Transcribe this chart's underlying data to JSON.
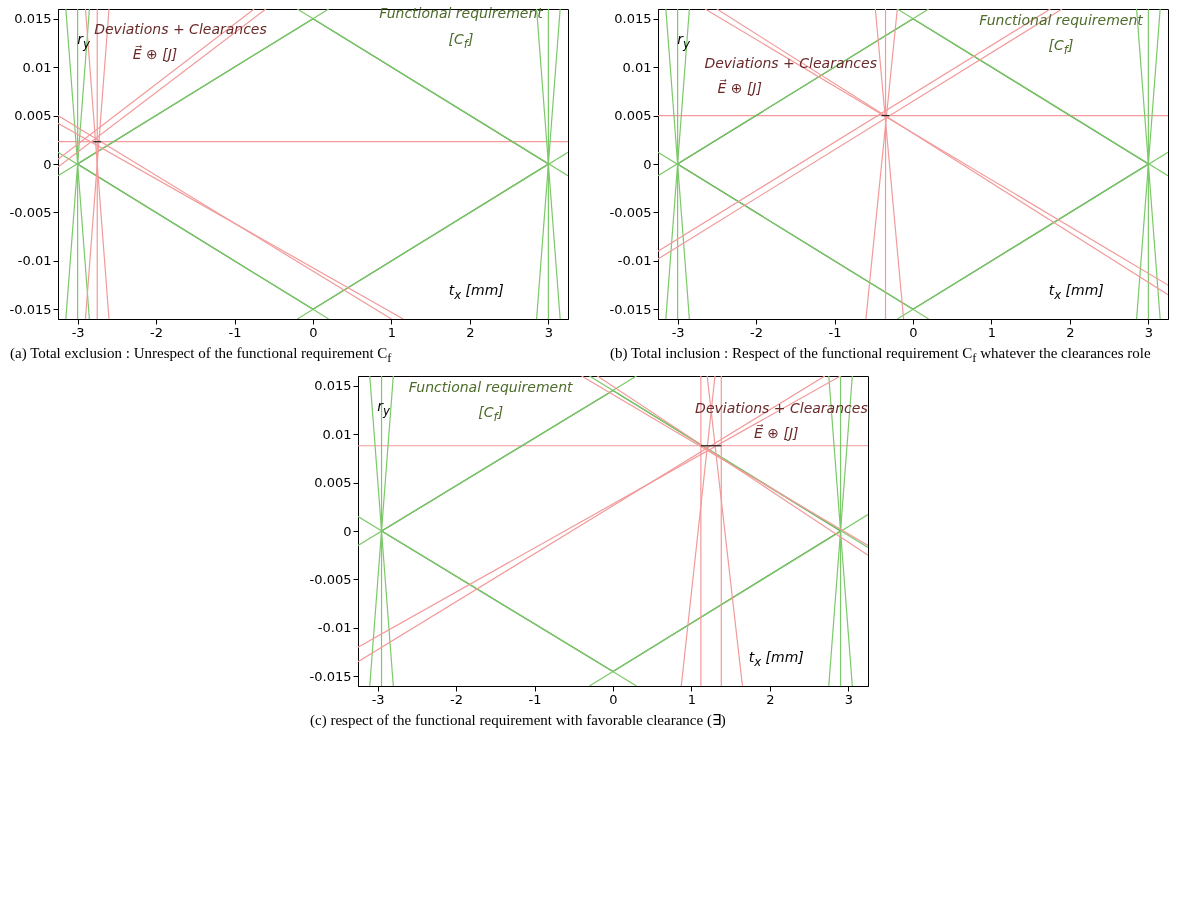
{
  "chart_data": [
    {
      "type": "line",
      "title": "(a) Total exclusion : Unrespect of the functional requirement C$_{f}$",
      "xlabel": "t$_{x}$  [mm]",
      "ylabel": "r$_{y}$",
      "xlim": [
        -3.25,
        3.25
      ],
      "ylim": [
        -0.016,
        0.016
      ],
      "xticks": [
        -3,
        -2,
        -1,
        0,
        1,
        2,
        3
      ],
      "yticks": [
        -0.015,
        -0.01,
        -0.005,
        0,
        0.005,
        0.01,
        0.015
      ],
      "grid": false,
      "annotations": [
        "Deviations + Clearances",
        "E⃗ ⊕ [J]",
        "Functional requirement",
        "[C$_{f}$]"
      ],
      "ref_lines": [
        {
          "axis": "y",
          "value": 0.0023,
          "color": "#f29a9a"
        }
      ],
      "series": [
        {
          "color": "#4f8f3c",
          "x": [
            -3,
            0
          ],
          "values": [
            0,
            0.015
          ]
        },
        {
          "color": "#4f8f3c",
          "x": [
            0,
            3
          ],
          "values": [
            0.015,
            0
          ]
        },
        {
          "color": "#4f8f3c",
          "x": [
            -3,
            0
          ],
          "values": [
            0,
            -0.015
          ]
        },
        {
          "color": "#4f8f3c",
          "x": [
            0,
            3
          ],
          "values": [
            -0.015,
            0
          ]
        },
        {
          "color": "#7cc96a",
          "x": [
            -3.25,
            0.2
          ],
          "values": [
            -0.0012,
            0.016
          ]
        },
        {
          "color": "#7cc96a",
          "x": [
            -0.2,
            3.25
          ],
          "values": [
            0.016,
            -0.0012
          ]
        },
        {
          "color": "#7cc96a",
          "x": [
            -3.25,
            0.2
          ],
          "values": [
            0.0012,
            -0.016
          ]
        },
        {
          "color": "#7cc96a",
          "x": [
            -0.2,
            3.25
          ],
          "values": [
            -0.016,
            0.0012
          ]
        },
        {
          "color": "#7cc96a",
          "x": [
            -3.15,
            -2.85
          ],
          "values": [
            0.016,
            -0.016
          ]
        },
        {
          "color": "#7cc96a",
          "x": [
            -2.85,
            -3.15
          ],
          "values": [
            0.016,
            -0.016
          ]
        },
        {
          "color": "#7cc96a",
          "x": [
            -3,
            -3
          ],
          "values": [
            0.016,
            -0.016
          ]
        },
        {
          "color": "#7cc96a",
          "x": [
            3.15,
            2.85
          ],
          "values": [
            0.016,
            -0.016
          ]
        },
        {
          "color": "#7cc96a",
          "x": [
            2.85,
            3.15
          ],
          "values": [
            0.016,
            -0.016
          ]
        },
        {
          "color": "#7cc96a",
          "x": [
            3,
            3
          ],
          "values": [
            0.016,
            -0.016
          ]
        },
        {
          "color": "#f29a9a",
          "x": [
            -2.9,
            -2.6
          ],
          "values": [
            0.016,
            -0.016
          ]
        },
        {
          "color": "#f29a9a",
          "x": [
            -2.6,
            -2.9
          ],
          "values": [
            0.016,
            -0.016
          ]
        },
        {
          "color": "#f29a9a",
          "x": [
            -2.75,
            -2.75
          ],
          "values": [
            0.016,
            -0.016
          ]
        },
        {
          "color": "#f29a9a",
          "x": [
            -3.25,
            -0.75
          ],
          "values": [
            0.0005,
            0.016
          ]
        },
        {
          "color": "#f29a9a",
          "x": [
            -3.25,
            -0.6
          ],
          "values": [
            -0.0003,
            0.016
          ]
        },
        {
          "color": "#f29a9a",
          "x": [
            -3.25,
            1.0
          ],
          "values": [
            0.005,
            -0.016
          ]
        },
        {
          "color": "#f29a9a",
          "x": [
            -3.25,
            1.15
          ],
          "values": [
            0.0042,
            -0.016
          ]
        },
        {
          "color": "#222222",
          "x": [
            -2.8,
            -2.7
          ],
          "values": [
            0.0023,
            0.0023
          ]
        }
      ]
    },
    {
      "type": "line",
      "title": "(b) Total inclusion : Respect of the functional requirement C$_{f}$ whatever the clearances role",
      "xlabel": "t$_{x}$  [mm]",
      "ylabel": "r$_{y}$",
      "xlim": [
        -3.25,
        3.25
      ],
      "ylim": [
        -0.016,
        0.016
      ],
      "xticks": [
        -3,
        -2,
        -1,
        0,
        1,
        2,
        3
      ],
      "yticks": [
        -0.015,
        -0.01,
        -0.005,
        0,
        0.005,
        0.01,
        0.015
      ],
      "grid": false,
      "annotations": [
        "Deviations + Clearances",
        "E⃗ ⊕ [J]",
        "Functional requirement",
        "[C$_{f}$]"
      ],
      "ref_lines": [
        {
          "axis": "y",
          "value": 0.005,
          "color": "#f29a9a"
        }
      ],
      "series": [
        {
          "color": "#4f8f3c",
          "x": [
            -3,
            0
          ],
          "values": [
            0,
            0.015
          ]
        },
        {
          "color": "#4f8f3c",
          "x": [
            0,
            3
          ],
          "values": [
            0.015,
            0
          ]
        },
        {
          "color": "#4f8f3c",
          "x": [
            -3,
            0
          ],
          "values": [
            0,
            -0.015
          ]
        },
        {
          "color": "#4f8f3c",
          "x": [
            0,
            3
          ],
          "values": [
            -0.015,
            0
          ]
        },
        {
          "color": "#7cc96a",
          "x": [
            -3.25,
            0.2
          ],
          "values": [
            -0.0012,
            0.016
          ]
        },
        {
          "color": "#7cc96a",
          "x": [
            -0.2,
            3.25
          ],
          "values": [
            0.016,
            -0.0012
          ]
        },
        {
          "color": "#7cc96a",
          "x": [
            -3.25,
            0.2
          ],
          "values": [
            0.0012,
            -0.016
          ]
        },
        {
          "color": "#7cc96a",
          "x": [
            -0.2,
            3.25
          ],
          "values": [
            -0.016,
            0.0012
          ]
        },
        {
          "color": "#7cc96a",
          "x": [
            -3.15,
            -2.85
          ],
          "values": [
            0.016,
            -0.016
          ]
        },
        {
          "color": "#7cc96a",
          "x": [
            -2.85,
            -3.15
          ],
          "values": [
            0.016,
            -0.016
          ]
        },
        {
          "color": "#7cc96a",
          "x": [
            -3,
            -3
          ],
          "values": [
            0.016,
            -0.016
          ]
        },
        {
          "color": "#7cc96a",
          "x": [
            3.15,
            2.85
          ],
          "values": [
            0.016,
            -0.016
          ]
        },
        {
          "color": "#7cc96a",
          "x": [
            2.85,
            3.15
          ],
          "values": [
            0.016,
            -0.016
          ]
        },
        {
          "color": "#7cc96a",
          "x": [
            3,
            3
          ],
          "values": [
            0.016,
            -0.016
          ]
        },
        {
          "color": "#f29a9a",
          "x": [
            -0.48,
            -0.12
          ],
          "values": [
            0.016,
            -0.016
          ]
        },
        {
          "color": "#f29a9a",
          "x": [
            -0.2,
            -0.6
          ],
          "values": [
            0.016,
            -0.016
          ]
        },
        {
          "color": "#f29a9a",
          "x": [
            -0.35,
            -0.35
          ],
          "values": [
            0.016,
            -0.016
          ]
        },
        {
          "color": "#f29a9a",
          "x": [
            -3.25,
            1.75
          ],
          "values": [
            -0.009,
            0.016
          ]
        },
        {
          "color": "#f29a9a",
          "x": [
            -3.25,
            1.9
          ],
          "values": [
            -0.0098,
            0.016
          ]
        },
        {
          "color": "#f29a9a",
          "x": [
            -2.65,
            3.25
          ],
          "values": [
            0.016,
            -0.0125
          ]
        },
        {
          "color": "#f29a9a",
          "x": [
            -2.5,
            3.25
          ],
          "values": [
            0.016,
            -0.0135
          ]
        },
        {
          "color": "#222222",
          "x": [
            -0.4,
            -0.3
          ],
          "values": [
            0.005,
            0.005
          ]
        }
      ]
    },
    {
      "type": "line",
      "title": "(c) respect of the functional requirement with favorable clearance (∃)",
      "xlabel": "t$_{x}$  [mm]",
      "ylabel": "r$_{y}$",
      "xlim": [
        -3.25,
        3.25
      ],
      "ylim": [
        -0.016,
        0.016
      ],
      "xticks": [
        -3,
        -2,
        -1,
        0,
        1,
        2,
        3
      ],
      "yticks": [
        -0.015,
        -0.01,
        -0.005,
        0,
        0.005,
        0.01,
        0.015
      ],
      "grid": false,
      "annotations": [
        "Functional requirement",
        "[C$_{f}$]",
        "Deviations + Clearances",
        "E⃗ ⊕ [J]"
      ],
      "ref_lines": [
        {
          "axis": "y",
          "value": 0.0088,
          "color": "#f29a9a"
        }
      ],
      "series": [
        {
          "color": "#4f8f3c",
          "x": [
            -2.95,
            0
          ],
          "values": [
            0,
            0.0145
          ]
        },
        {
          "color": "#4f8f3c",
          "x": [
            0,
            2.9
          ],
          "values": [
            0.0145,
            0
          ]
        },
        {
          "color": "#4f8f3c",
          "x": [
            -2.95,
            0
          ],
          "values": [
            0,
            -0.0145
          ]
        },
        {
          "color": "#4f8f3c",
          "x": [
            0,
            2.9
          ],
          "values": [
            -0.0145,
            0
          ]
        },
        {
          "color": "#7cc96a",
          "x": [
            -3.25,
            0.3
          ],
          "values": [
            -0.0015,
            0.016
          ]
        },
        {
          "color": "#7cc96a",
          "x": [
            -0.3,
            3.25
          ],
          "values": [
            0.016,
            -0.0017
          ]
        },
        {
          "color": "#7cc96a",
          "x": [
            -3.25,
            0.3
          ],
          "values": [
            0.0015,
            -0.016
          ]
        },
        {
          "color": "#7cc96a",
          "x": [
            -0.3,
            3.25
          ],
          "values": [
            -0.016,
            0.0017
          ]
        },
        {
          "color": "#7cc96a",
          "x": [
            -3.1,
            -2.8
          ],
          "values": [
            0.016,
            -0.016
          ]
        },
        {
          "color": "#7cc96a",
          "x": [
            -2.8,
            -3.1
          ],
          "values": [
            0.016,
            -0.016
          ]
        },
        {
          "color": "#7cc96a",
          "x": [
            -2.95,
            -2.95
          ],
          "values": [
            0.016,
            -0.016
          ]
        },
        {
          "color": "#7cc96a",
          "x": [
            3.05,
            2.75
          ],
          "values": [
            0.016,
            -0.016
          ]
        },
        {
          "color": "#7cc96a",
          "x": [
            2.75,
            3.05
          ],
          "values": [
            0.016,
            -0.016
          ]
        },
        {
          "color": "#7cc96a",
          "x": [
            2.9,
            2.9
          ],
          "values": [
            0.016,
            -0.016
          ]
        },
        {
          "color": "#f29a9a",
          "x": [
            1.12,
            1.12
          ],
          "values": [
            0.016,
            -0.016
          ]
        },
        {
          "color": "#f29a9a",
          "x": [
            1.38,
            1.38
          ],
          "values": [
            0.016,
            -0.016
          ]
        },
        {
          "color": "#f29a9a",
          "x": [
            1.3,
            0.87
          ],
          "values": [
            0.016,
            -0.016
          ]
        },
        {
          "color": "#f29a9a",
          "x": [
            1.2,
            1.65
          ],
          "values": [
            0.016,
            -0.016
          ]
        },
        {
          "color": "#f29a9a",
          "x": [
            -3.25,
            2.9
          ],
          "values": [
            -0.012,
            0.016
          ]
        },
        {
          "color": "#f29a9a",
          "x": [
            -3.25,
            2.7
          ],
          "values": [
            -0.0135,
            0.016
          ]
        },
        {
          "color": "#f29a9a",
          "x": [
            -0.4,
            3.25
          ],
          "values": [
            0.016,
            -0.0015
          ]
        },
        {
          "color": "#f29a9a",
          "x": [
            -0.2,
            3.25
          ],
          "values": [
            0.016,
            -0.0025
          ]
        },
        {
          "color": "#222222",
          "x": [
            1.12,
            1.38
          ],
          "values": [
            0.0088,
            0.0088
          ]
        }
      ]
    }
  ]
}
